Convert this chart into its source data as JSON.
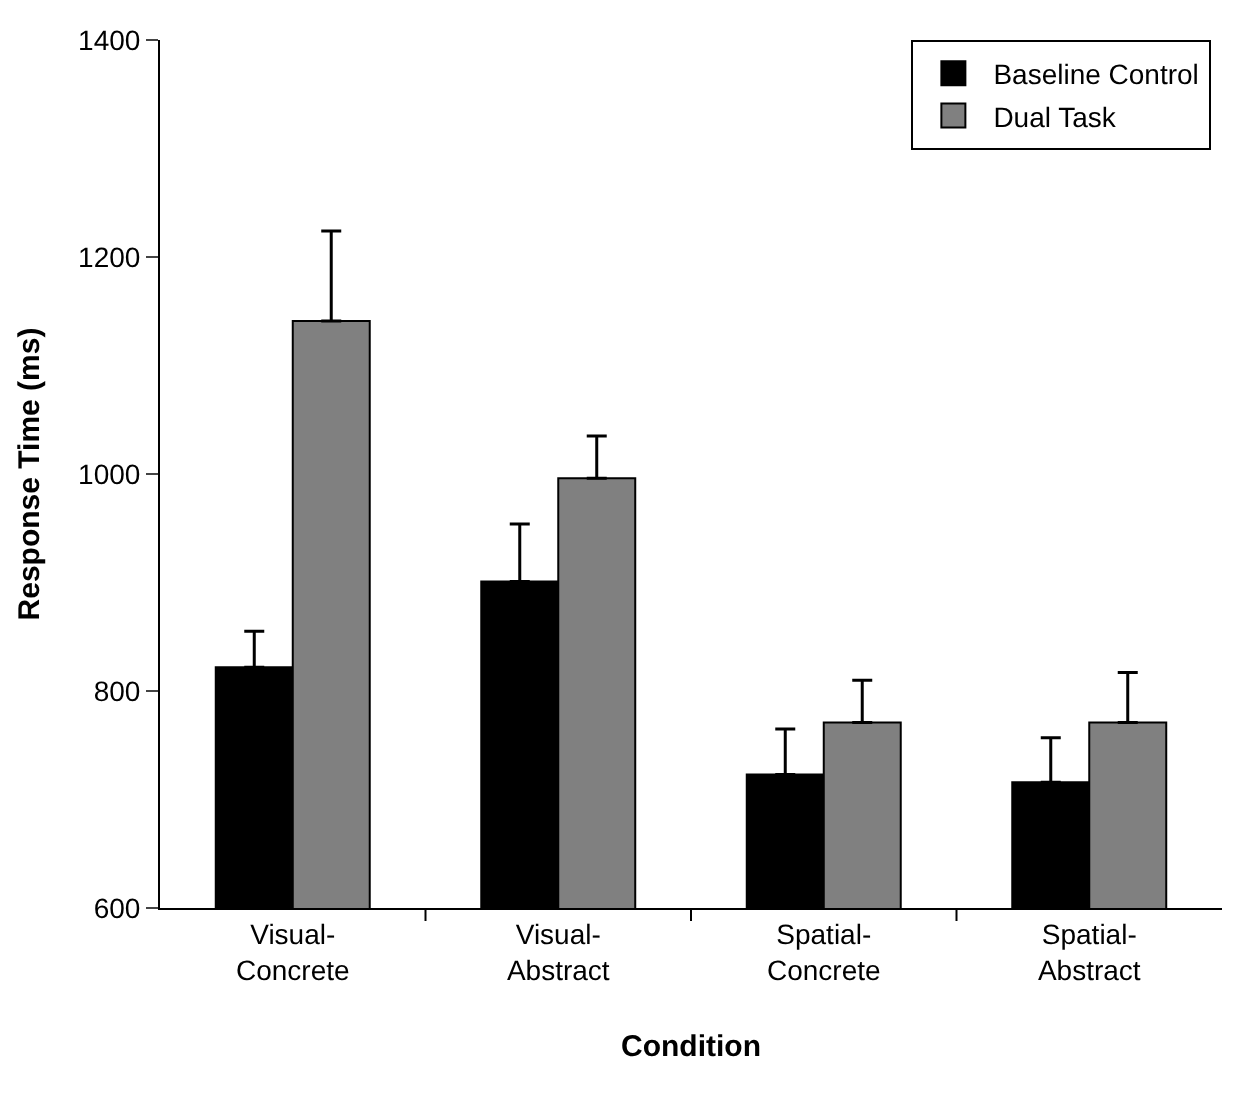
{
  "chart_data": {
    "type": "bar",
    "xlabel": "Condition",
    "ylabel": "Response Time (ms)",
    "categories": [
      "Visual-\nConcrete",
      "Visual-\nAbstract",
      "Spatial-\nConcrete",
      "Spatial-\nAbstract"
    ],
    "series": [
      {
        "name": "Baseline Control",
        "color": "#000000",
        "values": [
          822,
          901,
          723,
          716
        ],
        "errors": [
          [
            822,
            855
          ],
          [
            901,
            954
          ],
          [
            723,
            765
          ],
          [
            716,
            757
          ]
        ]
      },
      {
        "name": "Dual Task",
        "color": "#808080",
        "values": [
          1141,
          996,
          771,
          771
        ],
        "errors": [
          [
            1141,
            1224
          ],
          [
            996,
            1035
          ],
          [
            771,
            810
          ],
          [
            771,
            817
          ]
        ]
      }
    ],
    "ylim": [
      600,
      1400
    ],
    "yticks": [
      600,
      800,
      1000,
      1200,
      1400
    ],
    "legend": "top right"
  }
}
